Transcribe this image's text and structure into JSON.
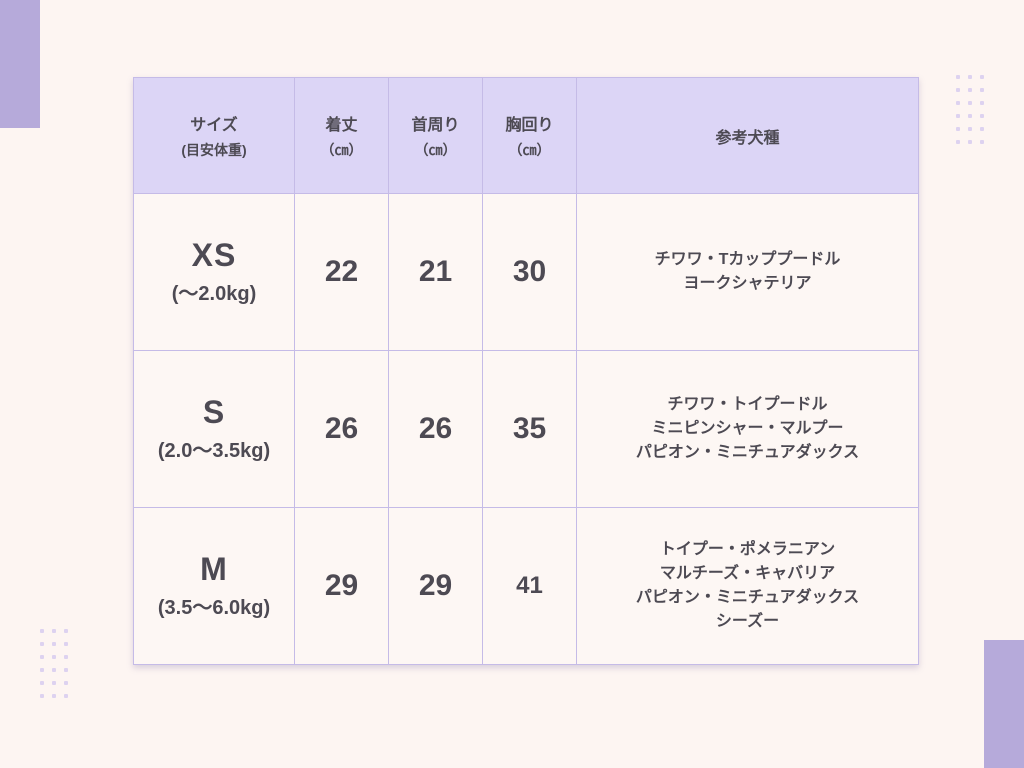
{
  "colors": {
    "page-bg": "#fdf5f2",
    "header-bg": "#dcd5f6",
    "cell-bg": "#fdf7f4",
    "border": "#c5bbe7",
    "text": "#4d4a53",
    "accent-rect": "#b6aada",
    "dot": "#ddd2f0"
  },
  "table": {
    "header": {
      "size": {
        "title": "サイズ",
        "sub": "(目安体重)"
      },
      "length": {
        "title": "着丈",
        "sub": "（㎝）"
      },
      "neck": {
        "title": "首周り",
        "sub": "（㎝）"
      },
      "chest": {
        "title": "胸回り",
        "sub": "（㎝）"
      },
      "breeds": {
        "title": "参考犬種"
      }
    },
    "rows": [
      {
        "size": "XS",
        "weight": "(～2.0kg)",
        "length": "22",
        "neck": "21",
        "chest": "30",
        "breeds": [
          "チワワ・Tカッププードル",
          "ヨークシャテリア"
        ]
      },
      {
        "size": "S",
        "weight": "(2.0～3.5kg)",
        "length": "26",
        "neck": "26",
        "chest": "35",
        "breeds": [
          "チワワ・トイプードル",
          "ミニピンシャー・マルプー",
          "パピオン・ミニチュアダックス"
        ]
      },
      {
        "size": "M",
        "weight": "(3.5～6.0kg)",
        "length": "29",
        "neck": "29",
        "chest": "41",
        "breeds": [
          "トイプー・ポメラニアン",
          "マルチーズ・キャバリア",
          "パピオン・ミニチュアダックス",
          "シーズー"
        ]
      }
    ]
  },
  "chart_data": {
    "type": "table",
    "title": "",
    "columns": [
      "サイズ(目安体重)",
      "着丈（㎝）",
      "首周り（㎝）",
      "胸回り（㎝）",
      "参考犬種"
    ],
    "rows": [
      [
        "XS (～2.0kg)",
        22,
        21,
        30,
        "チワワ・Tカッププードル／ヨークシャテリア"
      ],
      [
        "S (2.0～3.5kg)",
        26,
        26,
        35,
        "チワワ・トイプードル／ミニピンシャー・マルプー／パピオン・ミニチュアダックス"
      ],
      [
        "M (3.5～6.0kg)",
        29,
        29,
        41,
        "トイプー・ポメラニアン／マルチーズ・キャバリア／パピオン・ミニチュアダックス／シーズー"
      ]
    ]
  }
}
